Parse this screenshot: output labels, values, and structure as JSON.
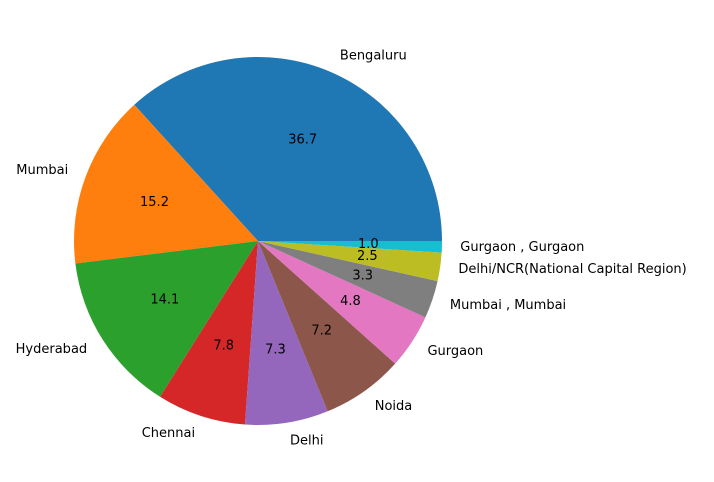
{
  "chart_data": {
    "type": "pie",
    "title": "",
    "start_angle_deg": 0,
    "direction": "counterclockwise",
    "percent_format": "%.1f",
    "slices": [
      {
        "label": "Bengaluru",
        "value": 36.7,
        "pct_label": "36.7",
        "color": "#1f77b4"
      },
      {
        "label": "Mumbai",
        "value": 15.2,
        "pct_label": "15.2",
        "color": "#ff7f0e"
      },
      {
        "label": "Hyderabad",
        "value": 14.1,
        "pct_label": "14.1",
        "color": "#2ca02c"
      },
      {
        "label": "Chennai",
        "value": 7.8,
        "pct_label": "7.8",
        "color": "#d62728"
      },
      {
        "label": "Delhi",
        "value": 7.3,
        "pct_label": "7.3",
        "color": "#9467bd"
      },
      {
        "label": "Noida",
        "value": 7.2,
        "pct_label": "7.2",
        "color": "#8c564b"
      },
      {
        "label": "Gurgaon",
        "value": 4.8,
        "pct_label": "4.8",
        "color": "#e377c2"
      },
      {
        "label": "Mumbai , Mumbai",
        "value": 3.3,
        "pct_label": "3.3",
        "color": "#7f7f7f"
      },
      {
        "label": "Delhi/NCR(National Capital Region)",
        "value": 2.5,
        "pct_label": "2.5",
        "color": "#bcbd22"
      },
      {
        "label": "Gurgaon , Gurgaon",
        "value": 1.0,
        "pct_label": "1.0",
        "color": "#17becf"
      }
    ]
  }
}
